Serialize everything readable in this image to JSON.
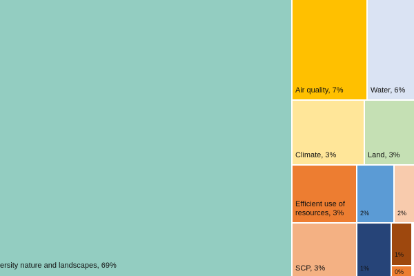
{
  "chart_data": {
    "type": "treemap",
    "items": [
      {
        "name": "sity nature and landscapes",
        "label": "ersity nature and landscapes, 69%",
        "value": 69,
        "color": "#93cdc1"
      },
      {
        "name": "Air quality",
        "label": "Air quality, 7%",
        "value": 7,
        "color": "#ffc000"
      },
      {
        "name": "Water",
        "label": "Water, 6%",
        "value": 6,
        "color": "#dae3f3"
      },
      {
        "name": "Climate",
        "label": "Climate, 3%",
        "value": 3,
        "color": "#ffe699"
      },
      {
        "name": "Land",
        "label": "Land, 3%",
        "value": 3,
        "color": "#c5e0b4"
      },
      {
        "name": "Efficient use of resources",
        "label": "Efficient use of resources, 3%",
        "value": 3,
        "color": "#ed7d31"
      },
      {
        "name": "",
        "label": "2%",
        "value": 2,
        "color": "#5b9bd5"
      },
      {
        "name": "",
        "label": "2%",
        "value": 2,
        "color": "#f8cbad"
      },
      {
        "name": "SCP",
        "label": "SCP, 3%",
        "value": 3,
        "color": "#f4b183"
      },
      {
        "name": "",
        "label": "1%",
        "value": 1,
        "color": "#264478"
      },
      {
        "name": "",
        "label": "1%",
        "value": 1,
        "color": "#9e480e"
      },
      {
        "name": "",
        "label": "0%",
        "value": 0,
        "color": "#ed7d31"
      }
    ]
  }
}
